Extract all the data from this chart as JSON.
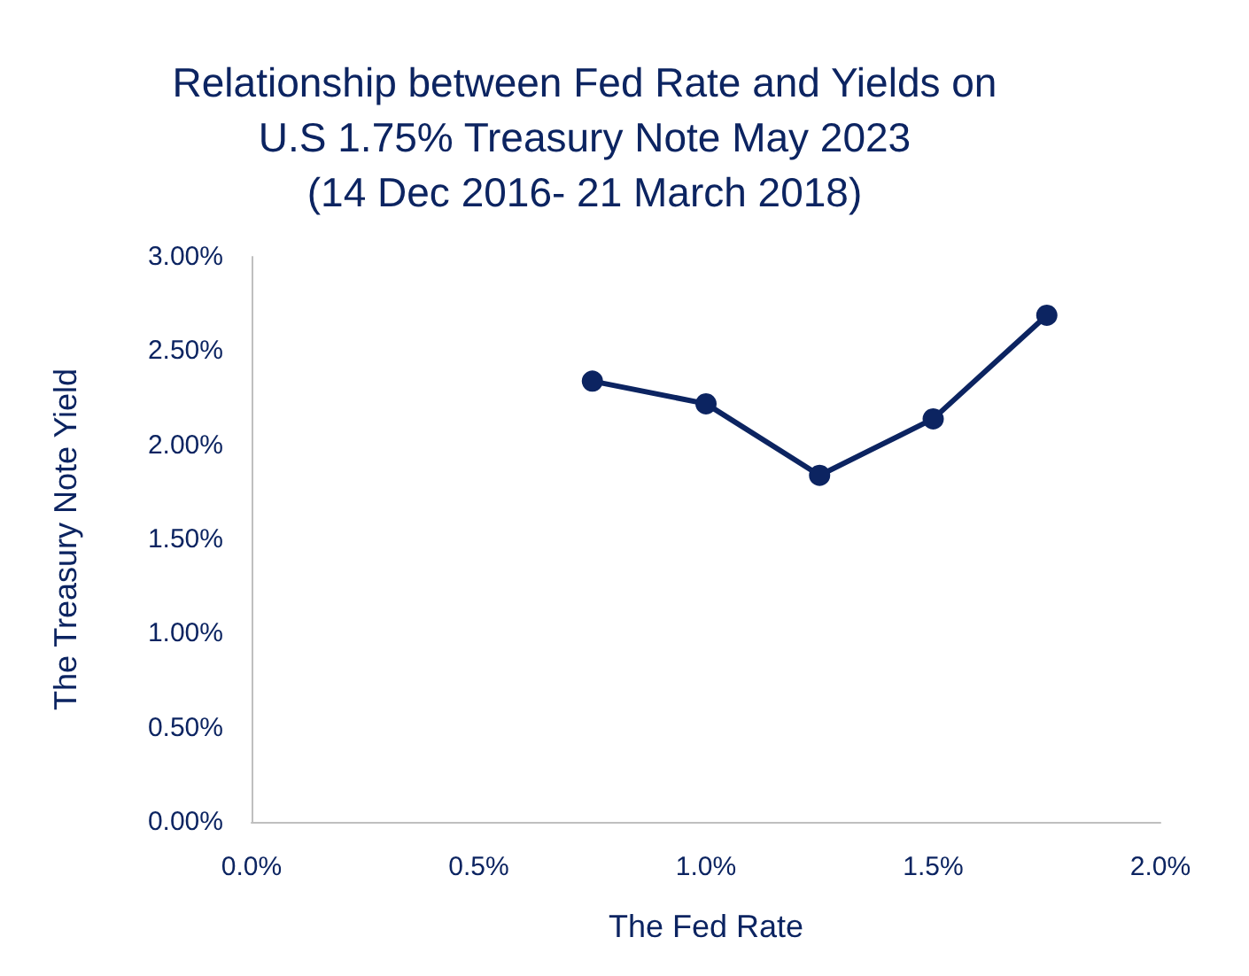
{
  "chart_data": {
    "type": "line",
    "title": "Relationship between Fed Rate and Yields on\nU.S 1.75% Treasury Note May 2023\n(14 Dec 2016- 21 March 2018)",
    "xlabel": "The Fed Rate",
    "ylabel": "The Treasury Note Yield",
    "x": [
      0.75,
      1.0,
      1.25,
      1.5,
      1.75
    ],
    "series": [
      {
        "color": "#0c2461",
        "values": [
          2.34,
          2.22,
          1.84,
          2.14,
          2.69
        ]
      }
    ],
    "xlim": [
      0,
      2
    ],
    "xticks": [
      {
        "value": 0,
        "label": "0.0%"
      },
      {
        "value": 0.5,
        "label": "0.5%"
      },
      {
        "value": 1,
        "label": "1.0%"
      },
      {
        "value": 1.5,
        "label": "1.5%"
      },
      {
        "value": 2,
        "label": "2.0%"
      }
    ],
    "ylim": [
      0,
      3
    ],
    "yticks": [
      {
        "value": 0,
        "label": "0.00%"
      },
      {
        "value": 0.5,
        "label": "0.50%"
      },
      {
        "value": 1,
        "label": "1.00%"
      },
      {
        "value": 1.5,
        "label": "1.50%"
      },
      {
        "value": 2,
        "label": "2.00%"
      },
      {
        "value": 2.5,
        "label": "2.50%"
      },
      {
        "value": 3,
        "label": "3.00%"
      }
    ],
    "grid": false,
    "marker": "circle",
    "line_style": "solid"
  }
}
